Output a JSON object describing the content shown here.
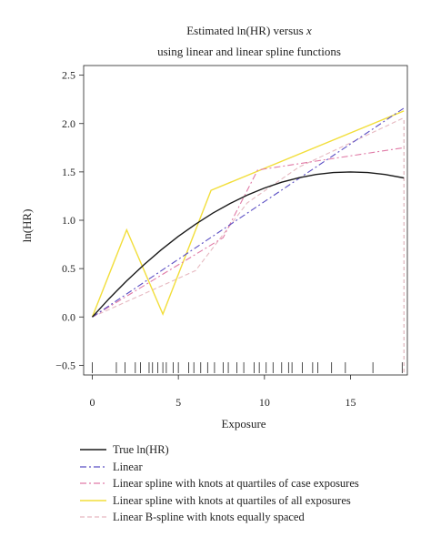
{
  "chart_data": {
    "type": "line",
    "title_line1": "Estimated ln(HR) versus ",
    "title_var": "x",
    "title_line2": "using linear and linear spline functions",
    "xlabel": "Exposure",
    "ylabel": "ln(HR)",
    "xlim": [
      -0.5,
      18.3
    ],
    "ylim": [
      -0.6,
      2.6
    ],
    "xticks": [
      0,
      5,
      10,
      15
    ],
    "xtick_labels": [
      "0",
      "5",
      "10",
      "15"
    ],
    "yticks": [
      -0.5,
      0.0,
      0.5,
      1.0,
      1.5,
      2.0,
      2.5
    ],
    "ytick_labels": [
      "−0.5",
      "0.0",
      "0.5",
      "1.0",
      "1.5",
      "2.0",
      "2.5"
    ],
    "vertical_reference_x": 18.1,
    "rug": [
      0,
      1.4,
      1.9,
      2.5,
      2.8,
      3.3,
      3.5,
      3.8,
      4.1,
      4.3,
      4.7,
      5.0,
      5.6,
      5.9,
      6.3,
      6.7,
      7.1,
      7.6,
      7.9,
      8.4,
      8.8,
      9.4,
      9.7,
      10.1,
      10.5,
      11.0,
      11.4,
      11.6,
      12.2,
      12.8,
      13.1,
      13.9,
      14.7,
      16.3,
      18.0
    ],
    "series": [
      {
        "name": "True ln(HR)",
        "color": "#1a1a1a",
        "dash": "solid",
        "x": [
          0,
          1,
          2,
          3,
          4,
          5,
          6,
          7,
          8,
          9,
          10,
          11,
          12,
          13,
          14,
          15,
          16,
          17,
          18.1
        ],
        "y": [
          0.0,
          0.193,
          0.373,
          0.54,
          0.693,
          0.833,
          0.96,
          1.073,
          1.173,
          1.26,
          1.333,
          1.393,
          1.44,
          1.473,
          1.493,
          1.5,
          1.493,
          1.473,
          1.438
        ]
      },
      {
        "name": "Linear",
        "color": "#5b4fc4",
        "dash": "dashdot",
        "x": [
          0,
          18.1
        ],
        "y": [
          0.0,
          2.16
        ]
      },
      {
        "name": "Linear spline with knots at quartiles of case exposures",
        "color": "#e07aa6",
        "dash": "dashdot",
        "x": [
          0,
          7.6,
          9.6,
          18.1
        ],
        "y": [
          0.0,
          0.82,
          1.52,
          1.75
        ]
      },
      {
        "name": "Linear spline with knots at quartiles of all exposures",
        "color": "#f2de3a",
        "dash": "solid",
        "x": [
          0,
          2.0,
          4.1,
          6.9,
          18.1
        ],
        "y": [
          0.0,
          0.9,
          0.03,
          1.31,
          2.13
        ]
      },
      {
        "name": "Linear B-spline with knots equally spaced",
        "color": "#e6b8c0",
        "dash": "dashed",
        "x": [
          0,
          6.0,
          9.0,
          12.0,
          18.1
        ],
        "y": [
          0.0,
          0.48,
          1.18,
          1.55,
          2.06
        ]
      }
    ]
  }
}
